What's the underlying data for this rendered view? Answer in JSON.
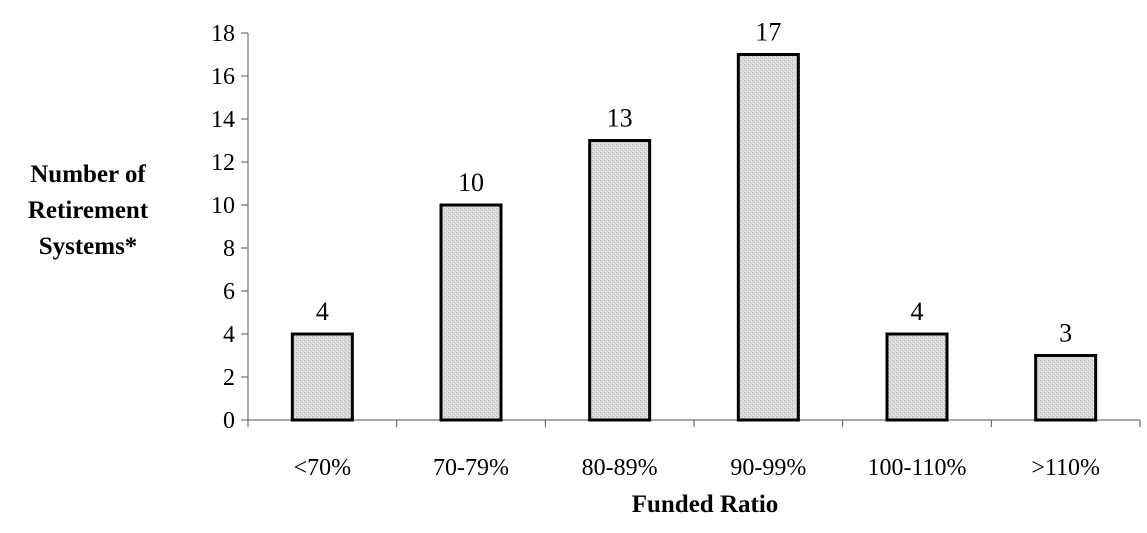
{
  "chart_data": {
    "type": "bar",
    "title": "",
    "xlabel": "Funded Ratio",
    "ylabel_lines": [
      "Number of",
      "Retirement",
      "Systems*"
    ],
    "categories": [
      "<70%",
      "70-79%",
      "80-89%",
      "90-99%",
      "100-110%",
      ">110%"
    ],
    "values": [
      4,
      10,
      13,
      17,
      4,
      3
    ],
    "ylim": [
      0,
      18
    ],
    "yticks": [
      0,
      2,
      4,
      6,
      8,
      10,
      12,
      14,
      16,
      18
    ],
    "grid": false,
    "legend": "none",
    "bar_fill": "#d4d4d4",
    "bar_stroke": "#000000"
  }
}
